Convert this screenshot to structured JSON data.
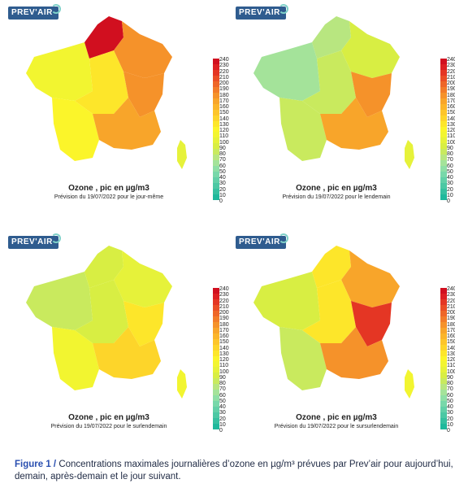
{
  "colors": {
    "scale": [
      "#1fb89c",
      "#36c0a0",
      "#4cc8a4",
      "#62d0a8",
      "#78d8aa",
      "#8edfa6",
      "#a4e39a",
      "#b8e680",
      "#c9ea5e",
      "#d8ee43",
      "#e6f23a",
      "#f2f530",
      "#fbf52a",
      "#fde62a",
      "#fdd52a",
      "#fdc52a",
      "#fbb52a",
      "#f8a52a",
      "#f5922a",
      "#f27c29",
      "#ee6628",
      "#ea4e26",
      "#e43624",
      "#dd1f22",
      "#d10f1f"
    ],
    "logo_bg": "#2f5c8f",
    "caption_accent": "#2a4fb0"
  },
  "colorbar_ticks": [
    "240",
    "230",
    "220",
    "210",
    "200",
    "190",
    "180",
    "170",
    "160",
    "150",
    "140",
    "130",
    "120",
    "110",
    "100",
    "90",
    "80",
    "70",
    "60",
    "50",
    "40",
    "30",
    "20",
    "10",
    "0"
  ],
  "panels": [
    {
      "logo": "PREV'AIR",
      "title": "Ozone , pic en µg/m3",
      "subtitle": "Prévision du 19/07/2022 pour le jour-même",
      "fills": {
        "north": "#d10f1f",
        "northeast": "#f5922a",
        "west": "#f2f530",
        "center": "#fde62a",
        "east": "#f5922a",
        "southwest": "#fbf52a",
        "southeast": "#f8a52a",
        "corsica": "#e6f23a"
      }
    },
    {
      "logo": "PREV'AIR",
      "title": "Ozone , pic en µg/m3",
      "subtitle": "Prévision du 19/07/2022 pour le lendemain",
      "fills": {
        "north": "#b8e680",
        "northeast": "#d8ee43",
        "west": "#a4e39a",
        "center": "#c9ea5e",
        "east": "#f5922a",
        "southwest": "#c9ea5e",
        "southeast": "#f8a52a",
        "corsica": "#e6f23a"
      }
    },
    {
      "logo": "PREV'AIR",
      "title": "Ozone , pic en µg/m3",
      "subtitle": "Prévision du 19/07/2022 pour le surlendemain",
      "fills": {
        "north": "#d8ee43",
        "northeast": "#e6f23a",
        "west": "#c9ea5e",
        "center": "#d8ee43",
        "east": "#fde62a",
        "southwest": "#f2f530",
        "southeast": "#fdd52a",
        "corsica": "#f2f530"
      }
    },
    {
      "logo": "PREV'AIR",
      "title": "Ozone , pic en µg/m3",
      "subtitle": "Prévision du 19/07/2022 pour le sursurlendemain",
      "fills": {
        "north": "#fde62a",
        "northeast": "#f8a52a",
        "west": "#d8ee43",
        "center": "#fde62a",
        "east": "#e43624",
        "southwest": "#c9ea5e",
        "southeast": "#f5922a",
        "corsica": "#f2f530"
      }
    }
  ],
  "caption": {
    "label": "Figure 1 /",
    "text": " Concentrations maximales journalières d’ozone en µg/m³ prévues par Prev’air pour aujourd’hui, demain, après-demain et le jour suivant."
  }
}
